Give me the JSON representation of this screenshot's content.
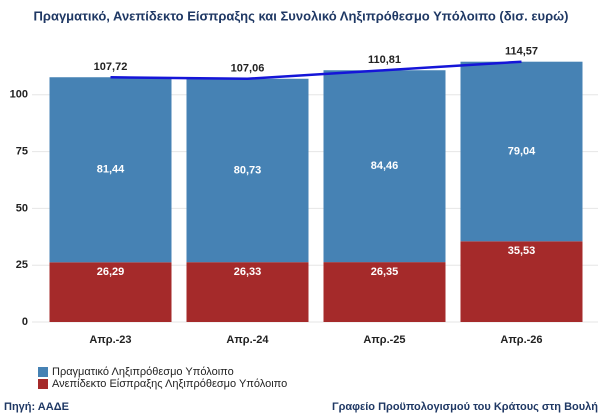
{
  "chart_data": {
    "type": "stacked_bar_line",
    "title": "Πραγματικό, Ανεπίδεκτο Είσπραξης και Συνολικό Ληξιπρόθεσμο Υπόλοιπο (δισ. ευρώ)",
    "categories": [
      "Απρ.-23",
      "Απρ.-24",
      "Απρ.-25",
      "Απρ.-26"
    ],
    "series": [
      {
        "name": "Πραγματικό Ληξιπρόθεσμο Υπόλοιπο",
        "color": "#4682b4",
        "values": [
          81.44,
          80.73,
          84.46,
          79.04
        ],
        "value_labels": [
          "81,44",
          "80,73",
          "84,46",
          "79,04"
        ]
      },
      {
        "name": "Ανεπίδεκτο Είσπραξης Ληξιπρόθεσμο Υπόλοιπο",
        "color": "#a52a2a",
        "values": [
          26.29,
          26.33,
          26.35,
          35.53
        ],
        "value_labels": [
          "26,29",
          "26,33",
          "26,35",
          "35,53"
        ]
      }
    ],
    "line": {
      "color": "#1515d8",
      "values": [
        107.72,
        107.06,
        110.81,
        114.57
      ],
      "value_labels": [
        "107,72",
        "107,06",
        "110,81",
        "114,57"
      ]
    },
    "ylim": [
      0,
      125
    ],
    "yticks": [
      0,
      25,
      50,
      75,
      100
    ],
    "grid": true,
    "legend": "bottom-left",
    "source": "Πηγή: ΑΑΔΕ",
    "credit": "Γραφείο Προϋπολογισμού του Κράτους στη Βουλή"
  }
}
